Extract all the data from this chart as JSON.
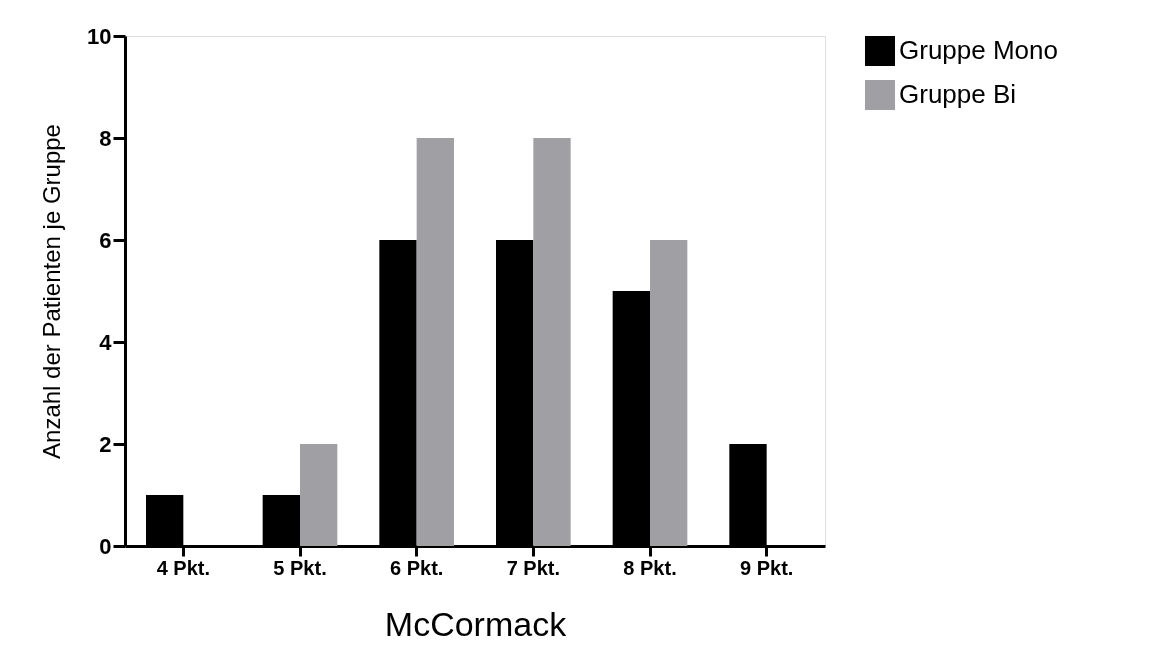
{
  "chart_data": {
    "type": "bar",
    "xlabel": "McCormack",
    "ylabel": "Anzahl der Patienten je Gruppe",
    "categories": [
      "4 Pkt.",
      "5 Pkt.",
      "6 Pkt.",
      "7 Pkt.",
      "8 Pkt.",
      "9 Pkt."
    ],
    "series": [
      {
        "name": "Gruppe Mono",
        "color": "#000000",
        "values": [
          1,
          1,
          6,
          6,
          5,
          2
        ]
      },
      {
        "name": "Gruppe Bi",
        "color": "#a0a0a4",
        "values": [
          0,
          2,
          8,
          8,
          6,
          0
        ]
      }
    ],
    "ylim": [
      0,
      10
    ],
    "yticks": [
      0,
      2,
      4,
      6,
      8,
      10
    ],
    "grid": false,
    "legend": "right"
  }
}
